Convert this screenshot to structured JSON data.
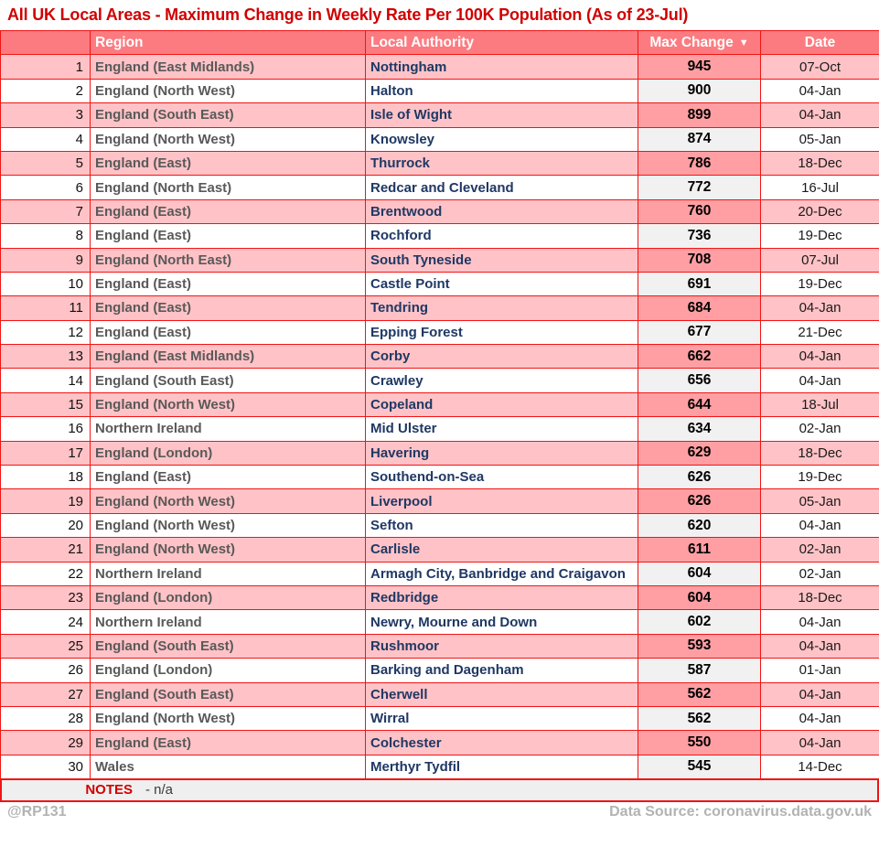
{
  "title": "All UK Local Areas - Maximum Change in Weekly Rate Per 100K Population (As of 23-Jul)",
  "table_headers": {
    "rank": "",
    "region": "Region",
    "authority": "Local Authority",
    "max_change": "Max Change",
    "date": "Date",
    "sort_icon": "▼"
  },
  "chart_data": {
    "type": "table",
    "title": "All UK Local Areas - Maximum Change in Weekly Rate Per 100K Population (As of 23-Jul)",
    "columns": [
      "Rank",
      "Region",
      "Local Authority",
      "Max Change",
      "Date"
    ],
    "sort": {
      "column": "Max Change",
      "direction": "desc"
    },
    "rows": [
      [
        1,
        "England (East Midlands)",
        "Nottingham",
        945,
        "07-Oct"
      ],
      [
        2,
        "England (North West)",
        "Halton",
        900,
        "04-Jan"
      ],
      [
        3,
        "England (South East)",
        "Isle of Wight",
        899,
        "04-Jan"
      ],
      [
        4,
        "England (North West)",
        "Knowsley",
        874,
        "05-Jan"
      ],
      [
        5,
        "England (East)",
        "Thurrock",
        786,
        "18-Dec"
      ],
      [
        6,
        "England (North East)",
        "Redcar and Cleveland",
        772,
        "16-Jul"
      ],
      [
        7,
        "England (East)",
        "Brentwood",
        760,
        "20-Dec"
      ],
      [
        8,
        "England (East)",
        "Rochford",
        736,
        "19-Dec"
      ],
      [
        9,
        "England (North East)",
        "South Tyneside",
        708,
        "07-Jul"
      ],
      [
        10,
        "England (East)",
        "Castle Point",
        691,
        "19-Dec"
      ],
      [
        11,
        "England (East)",
        "Tendring",
        684,
        "04-Jan"
      ],
      [
        12,
        "England (East)",
        "Epping Forest",
        677,
        "21-Dec"
      ],
      [
        13,
        "England (East Midlands)",
        "Corby",
        662,
        "04-Jan"
      ],
      [
        14,
        "England (South East)",
        "Crawley",
        656,
        "04-Jan"
      ],
      [
        15,
        "England (North West)",
        "Copeland",
        644,
        "18-Jul"
      ],
      [
        16,
        "Northern Ireland",
        "Mid Ulster",
        634,
        "02-Jan"
      ],
      [
        17,
        "England (London)",
        "Havering",
        629,
        "18-Dec"
      ],
      [
        18,
        "England (East)",
        "Southend-on-Sea",
        626,
        "19-Dec"
      ],
      [
        19,
        "England (North West)",
        "Liverpool",
        626,
        "05-Jan"
      ],
      [
        20,
        "England (North West)",
        "Sefton",
        620,
        "04-Jan"
      ],
      [
        21,
        "England (North West)",
        "Carlisle",
        611,
        "02-Jan"
      ],
      [
        22,
        "Northern Ireland",
        "Armagh City, Banbridge and Craigavon",
        604,
        "02-Jan"
      ],
      [
        23,
        "England (London)",
        "Redbridge",
        604,
        "18-Dec"
      ],
      [
        24,
        "Northern Ireland",
        "Newry, Mourne and Down",
        602,
        "04-Jan"
      ],
      [
        25,
        "England (South East)",
        "Rushmoor",
        593,
        "04-Jan"
      ],
      [
        26,
        "England (London)",
        "Barking and Dagenham",
        587,
        "01-Jan"
      ],
      [
        27,
        "England (South East)",
        "Cherwell",
        562,
        "04-Jan"
      ],
      [
        28,
        "England (North West)",
        "Wirral",
        562,
        "04-Jan"
      ],
      [
        29,
        "England (East)",
        "Colchester",
        550,
        "04-Jan"
      ],
      [
        30,
        "Wales",
        "Merthyr Tydfil",
        545,
        "14-Dec"
      ]
    ]
  },
  "notes": {
    "label": "NOTES",
    "text": "- n/a"
  },
  "footer": {
    "handle": "@RP131",
    "source": "Data Source: coronavirus.data.gov.uk"
  },
  "colors": {
    "title_red": "#d10000",
    "border_red": "#f21414",
    "header_bg": "#fc7b80",
    "row_pink": "#ffc3c7",
    "max_cell_pink": "#ff9fa3",
    "max_cell_gray": "#f1f1f2",
    "region_text": "#595959",
    "authority_text": "#1f3864",
    "notes_bg": "#efefef",
    "footer_text": "#b3b3b3"
  }
}
